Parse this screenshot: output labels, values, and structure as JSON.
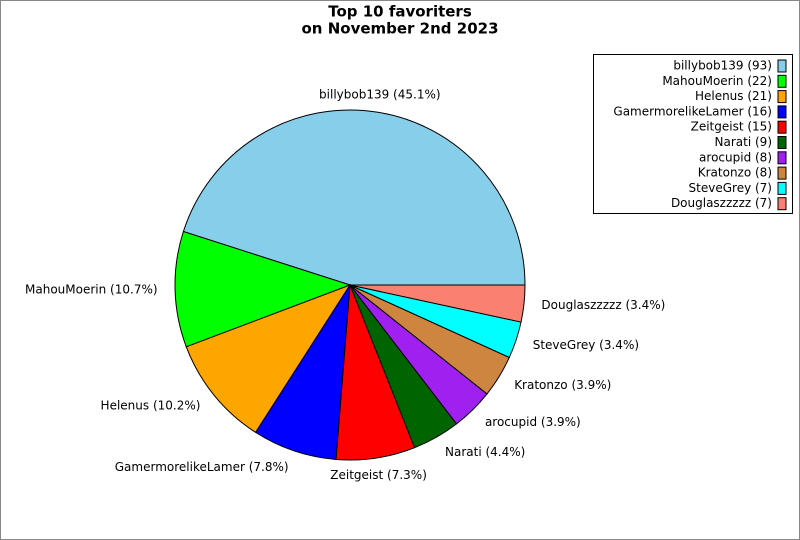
{
  "chart_data": {
    "type": "pie",
    "title": [
      "Top 10 favoriters",
      "on November 2nd 2023"
    ],
    "values": [
      45.1,
      10.7,
      10.2,
      7.8,
      7.3,
      4.4,
      3.9,
      3.9,
      3.4,
      3.4
    ],
    "value_labels": [
      "billybob139 (45.1%)",
      "MahouMoerin (10.7%)",
      "Helenus (10.2%)",
      "GamermorelikeLamer (7.8%)",
      "Zeitgeist (7.3%)",
      "Narati (4.4%)",
      "arocupid (3.9%)",
      "Kratonzo (3.9%)",
      "SteveGrey (3.4%)",
      "Douglaszzzzz (3.4%)"
    ],
    "legend_labels": [
      "billybob139 (93)",
      "MahouMoerin (22)",
      "Helenus (21)",
      "GamermorelikeLamer (16)",
      "Zeitgeist (15)",
      "Narati (9)",
      "arocupid (8)",
      "Kratonzo (8)",
      "SteveGrey (7)",
      "Douglaszzzzz (7)"
    ],
    "colors": [
      "#87ceeb",
      "#00ff00",
      "#ffa500",
      "#0000ff",
      "#ff0000",
      "#006400",
      "#a020f0",
      "#cd853f",
      "#00ffff",
      "#fa8072"
    ],
    "legend": "upper right"
  }
}
